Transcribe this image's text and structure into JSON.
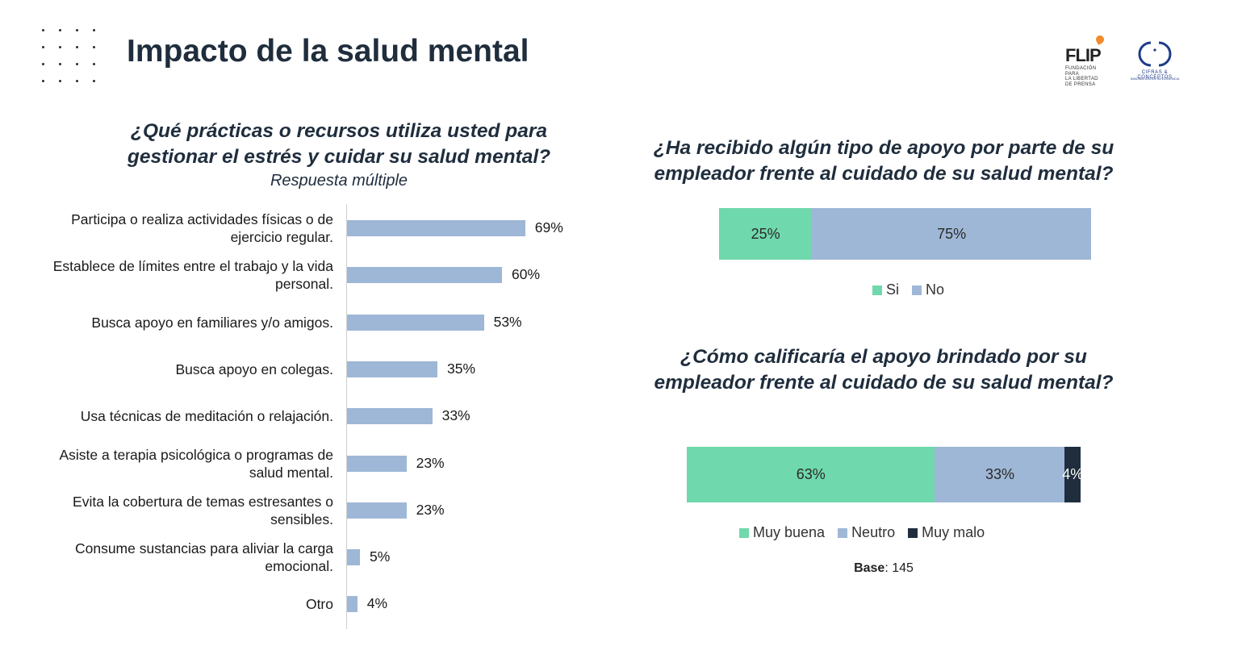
{
  "page": {
    "title": "Impacto de la salud mental",
    "base_label": "Base",
    "base_value": ": 145"
  },
  "logos": {
    "flip": {
      "word": "FLIP",
      "sub_line1": "FUNDACIÓN PARA",
      "sub_line2": "LA LIBERTAD",
      "sub_line3": "DE PRENSA"
    },
    "cc": {
      "word": "CIFRAS & CONCEPTOS",
      "sub": "INNOVACIÓN EN INTELIGENCIA"
    }
  },
  "colors": {
    "blue": "#9fb7d6",
    "green": "#6fd8ac",
    "navy": "#1f2d3d"
  },
  "chart_data": [
    {
      "type": "bar",
      "orientation": "horizontal",
      "title": "¿Qué prácticas o recursos utiliza usted para gestionar el estrés y cuidar su salud mental?",
      "subtitle": "Respuesta múltiple",
      "categories": [
        "Participa o realiza actividades físicas o de ejercicio regular.",
        "Establece de límites entre el trabajo y la vida personal.",
        "Busca apoyo en familiares y/o amigos.",
        "Busca apoyo en colegas.",
        "Usa técnicas de meditación o relajación.",
        "Asiste a terapia psicológica o programas de salud mental.",
        "Evita la cobertura de temas estresantes o sensibles.",
        "Consume sustancias para aliviar la carga emocional.",
        "Otro"
      ],
      "values": [
        69,
        60,
        53,
        35,
        33,
        23,
        23,
        5,
        4
      ],
      "value_labels": [
        "69%",
        "60%",
        "53%",
        "35%",
        "33%",
        "23%",
        "23%",
        "5%",
        "4%"
      ],
      "color": "#9fb7d6",
      "xlim": [
        0,
        100
      ]
    },
    {
      "type": "bar",
      "stacked": true,
      "title": "¿Ha recibido algún tipo de apoyo por parte de su empleador frente al cuidado de su salud mental?",
      "series": [
        {
          "name": "Si",
          "value": 25,
          "label": "25%",
          "color": "#6fd8ac"
        },
        {
          "name": "No",
          "value": 75,
          "label": "75%",
          "color": "#9fb7d6"
        }
      ]
    },
    {
      "type": "bar",
      "stacked": true,
      "title": "¿Cómo calificaría el apoyo brindado por su empleador frente al cuidado de su salud mental?",
      "series": [
        {
          "name": "Muy buena",
          "value": 63,
          "label": "63%",
          "color": "#6fd8ac"
        },
        {
          "name": "Neutro",
          "value": 33,
          "label": "33%",
          "color": "#9fb7d6"
        },
        {
          "name": "Muy malo",
          "value": 4,
          "label": "4%",
          "color": "#1f2d3d"
        }
      ]
    }
  ]
}
